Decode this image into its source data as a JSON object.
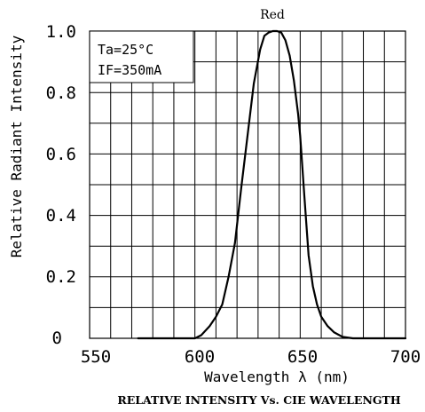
{
  "chart_data": {
    "type": "line",
    "title": "RELATIVE INTENSITY Vs. CIE WAVELENGTH",
    "xlabel": "Wavelength λ (nm)",
    "ylabel": "Relative Radiant Intensity",
    "xlim": [
      550,
      700
    ],
    "ylim": [
      0,
      1.0
    ],
    "x_ticks": [
      "550",
      "600",
      "650",
      "700"
    ],
    "y_ticks": [
      "0",
      "0.2",
      "0.4",
      "0.6",
      "0.8",
      "1.0"
    ],
    "grid": true,
    "conditions": [
      "Ta=25°C",
      "IF=350mA"
    ],
    "series": [
      {
        "name": "Red",
        "x": [
          573,
          580,
          590,
          600,
          603,
          607,
          610,
          613,
          616,
          619,
          622,
          625,
          628,
          631,
          633,
          635,
          637,
          639,
          641,
          643,
          645,
          647,
          649,
          650,
          652,
          654,
          656,
          658,
          660,
          663,
          666,
          670,
          675,
          680,
          690,
          700
        ],
        "y": [
          0.0,
          0.0,
          0.0,
          0.0,
          0.01,
          0.04,
          0.07,
          0.11,
          0.2,
          0.31,
          0.49,
          0.66,
          0.83,
          0.94,
          0.985,
          0.995,
          1.0,
          1.0,
          0.995,
          0.97,
          0.92,
          0.84,
          0.73,
          0.66,
          0.46,
          0.27,
          0.17,
          0.11,
          0.07,
          0.04,
          0.02,
          0.005,
          0.0,
          0.0,
          0.0,
          0.0
        ]
      }
    ]
  }
}
